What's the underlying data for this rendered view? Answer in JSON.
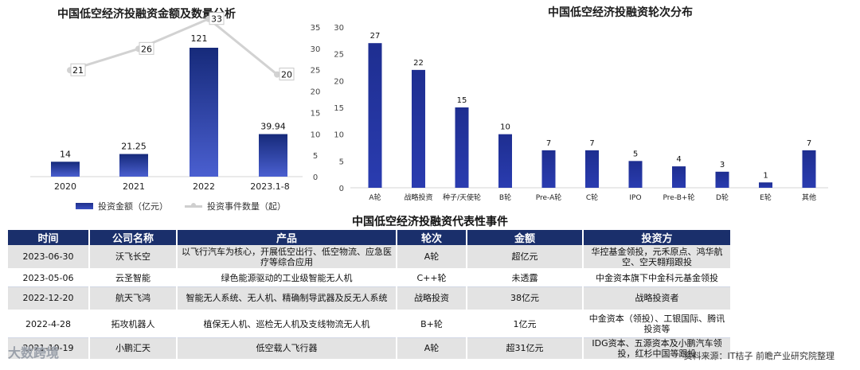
{
  "left_title": "中国低空经济投融资金额及数量分析",
  "right_title": "中国低空经济投融资轮次分布",
  "table_title": "中国低空经济投融资代表性事件",
  "legend": {
    "amount": "投资金额（亿元）",
    "count": "投资事件数量（起）"
  },
  "colors": {
    "bar": "#1f2f8a",
    "line": "#cfcfcf",
    "table_header": "#1a2f6b"
  },
  "chart_data": [
    {
      "type": "bar",
      "title": "中国低空经济投融资金额及数量分析",
      "categories": [
        "2020",
        "2021",
        "2022",
        "2023.1-8"
      ],
      "series": [
        {
          "name": "投资金额（亿元）",
          "type": "bar",
          "values": [
            14,
            21.25,
            121,
            39.94
          ]
        },
        {
          "name": "投资事件数量（起）",
          "type": "line",
          "axis": "right",
          "values": [
            21,
            26,
            33,
            20
          ]
        }
      ],
      "y2lim": [
        0,
        35
      ],
      "y2ticks": [
        0,
        5,
        10,
        15,
        20,
        25,
        30,
        35
      ]
    },
    {
      "type": "bar",
      "title": "中国低空经济投融资轮次分布",
      "categories": [
        "A轮",
        "战略投资",
        "种子/天使轮",
        "B轮",
        "Pre-A轮",
        "C轮",
        "IPO",
        "Pre-B+轮",
        "D轮",
        "E轮",
        "其他"
      ],
      "values": [
        27,
        22,
        15,
        10,
        7,
        7,
        5,
        4,
        3,
        1,
        7
      ],
      "ylim": [
        0,
        30
      ],
      "yticks": [
        0,
        5,
        10,
        15,
        20,
        25,
        30
      ]
    }
  ],
  "table": {
    "headers": [
      "时间",
      "公司名称",
      "产品",
      "轮次",
      "金额",
      "投资方"
    ],
    "rows": [
      {
        "date": "2023-06-30",
        "company": "沃飞长空",
        "product": "以飞行汽车为核心，开展低空出行、低空物流、应急医疗等综合应用",
        "round": "A轮",
        "amount": "超亿元",
        "investors": "华控基金领投，元禾原点、鸿华航空、空天翱翔跟投"
      },
      {
        "date": "2023-05-06",
        "company": "云圣智能",
        "product": "绿色能源驱动的工业级智能无人机",
        "round": "C++轮",
        "amount": "未透露",
        "investors": "中金资本旗下中金科元基金领投"
      },
      {
        "date": "2022-12-20",
        "company": "航天飞鸿",
        "product": "智能无人系统、无人机、精确制导武器及反无人系统",
        "round": "战略投资",
        "amount": "38亿元",
        "investors": "战略投资者"
      },
      {
        "date": "2022-4-28",
        "company": "拓攻机器人",
        "product": "植保无人机、巡检无人机及支线物流无人机",
        "round": "B+轮",
        "amount": "1亿元",
        "investors": "中金资本（领投）、工银国际、腾讯投资等"
      },
      {
        "date": "2021-10-19",
        "company": "小鹏汇天",
        "product": "低空载人飞行器",
        "round": "A轮",
        "amount": "超31亿元",
        "investors": "IDG资本、五源资本及小鹏汽车领投，红杉中国等跟投"
      }
    ]
  },
  "source": "资料来源：IT桔子 前瞻产业研究院整理",
  "corner_logo": "大数跨境"
}
